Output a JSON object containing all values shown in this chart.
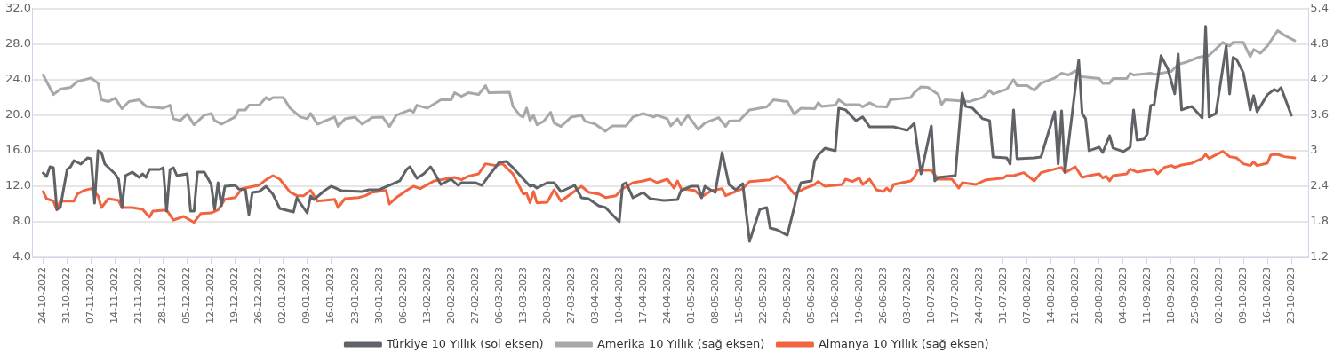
{
  "chart_data": {
    "type": "line",
    "legend": "bottom",
    "grid": "y",
    "line_style": "solid",
    "xlim": [
      "2022-10-21",
      "2023-10-28"
    ],
    "xticks": [
      {
        "value": "2022-10-24",
        "label": "24-10-2022"
      },
      {
        "value": "2022-10-31",
        "label": "31-10-2022"
      },
      {
        "value": "2022-11-07",
        "label": "07-11-2022"
      },
      {
        "value": "2022-11-14",
        "label": "14-11-2022"
      },
      {
        "value": "2022-11-21",
        "label": "21-11-2022"
      },
      {
        "value": "2022-11-28",
        "label": "28-11-2022"
      },
      {
        "value": "2022-12-05",
        "label": "05-12-2022"
      },
      {
        "value": "2022-12-12",
        "label": "12-12-2022"
      },
      {
        "value": "2022-12-19",
        "label": "19-12-2022"
      },
      {
        "value": "2022-12-26",
        "label": "26-12-2022"
      },
      {
        "value": "2023-01-02",
        "label": "02-01-2023"
      },
      {
        "value": "2023-01-09",
        "label": "09-01-2023"
      },
      {
        "value": "2023-01-16",
        "label": "16-01-2023"
      },
      {
        "value": "2023-01-23",
        "label": "23-01-2023"
      },
      {
        "value": "2023-01-30",
        "label": "30-01-2023"
      },
      {
        "value": "2023-02-06",
        "label": "06-02-2023"
      },
      {
        "value": "2023-02-13",
        "label": "13-02-2023"
      },
      {
        "value": "2023-02-20",
        "label": "20-02-2023"
      },
      {
        "value": "2023-02-27",
        "label": "27-02-2023"
      },
      {
        "value": "2023-03-06",
        "label": "06-03-2023"
      },
      {
        "value": "2023-03-13",
        "label": "13-03-2023"
      },
      {
        "value": "2023-03-20",
        "label": "20-03-2023"
      },
      {
        "value": "2023-03-27",
        "label": "27-03-2023"
      },
      {
        "value": "2023-04-03",
        "label": "03-04-2023"
      },
      {
        "value": "2023-04-10",
        "label": "10-04-2023"
      },
      {
        "value": "2023-04-17",
        "label": "17-04-2023"
      },
      {
        "value": "2023-04-24",
        "label": "24-04-2023"
      },
      {
        "value": "2023-05-01",
        "label": "01-05-2023"
      },
      {
        "value": "2023-05-08",
        "label": "08-05-2023"
      },
      {
        "value": "2023-05-15",
        "label": "15-05-2023"
      },
      {
        "value": "2023-05-22",
        "label": "22-05-2023"
      },
      {
        "value": "2023-05-29",
        "label": "29-05-2023"
      },
      {
        "value": "2023-06-05",
        "label": "05-06-2023"
      },
      {
        "value": "2023-06-12",
        "label": "12-06-2023"
      },
      {
        "value": "2023-06-19",
        "label": "19-06-2023"
      },
      {
        "value": "2023-06-26",
        "label": "26-06-2023"
      },
      {
        "value": "2023-07-03",
        "label": "03-07-2023"
      },
      {
        "value": "2023-07-10",
        "label": "10-07-2023"
      },
      {
        "value": "2023-07-17",
        "label": "17-07-2023"
      },
      {
        "value": "2023-07-24",
        "label": "24-07-2023"
      },
      {
        "value": "2023-07-31",
        "label": "31-07-2023"
      },
      {
        "value": "2023-08-07",
        "label": "07-08-2023"
      },
      {
        "value": "2023-08-14",
        "label": "14-08-2023"
      },
      {
        "value": "2023-08-21",
        "label": "21-08-2023"
      },
      {
        "value": "2023-08-28",
        "label": "28-08-2023"
      },
      {
        "value": "2023-09-04",
        "label": "04-09-2023"
      },
      {
        "value": "2023-09-11",
        "label": "11-09-2023"
      },
      {
        "value": "2023-09-18",
        "label": "18-09-2023"
      },
      {
        "value": "2023-09-25",
        "label": "25-09-2023"
      },
      {
        "value": "2023-10-02",
        "label": "02-10-2023"
      },
      {
        "value": "2023-10-09",
        "label": "09-10-2023"
      },
      {
        "value": "2023-10-16",
        "label": "16-10-2023"
      },
      {
        "value": "2023-10-23",
        "label": "23-10-2023"
      }
    ],
    "ylim": [
      4,
      32
    ],
    "yticks": [
      {
        "value": 4,
        "label": "4.0"
      },
      {
        "value": 8,
        "label": "8.0"
      },
      {
        "value": 12,
        "label": "12.0"
      },
      {
        "value": 16,
        "label": "16.0"
      },
      {
        "value": 20,
        "label": "20.0"
      },
      {
        "value": 24,
        "label": "24.0"
      },
      {
        "value": 28,
        "label": "28.0"
      },
      {
        "value": 32,
        "label": "32.0"
      }
    ],
    "y2lim": [
      1.2,
      5.4
    ],
    "y2ticks": [
      1.2,
      1.8,
      2.4,
      3.0,
      3.6,
      4.2,
      4.8,
      5.4
    ],
    "series": [
      {
        "name": "Türkiye 10 Yıllık (sol eksen)",
        "color": "#5f6266",
        "x": [
          "2022-10-24",
          "2022-10-25",
          "2022-10-26",
          "2022-10-27",
          "2022-10-28",
          "2022-10-29",
          "2022-10-31",
          "2022-11-01",
          "2022-11-02",
          "2022-11-04",
          "2022-11-06",
          "2022-11-07",
          "2022-11-08",
          "2022-11-09",
          "2022-11-10",
          "2022-11-11",
          "2022-11-14",
          "2022-11-15",
          "2022-11-16",
          "2022-11-17",
          "2022-11-19",
          "2022-11-21",
          "2022-11-22",
          "2022-11-23",
          "2022-11-24",
          "2022-11-27",
          "2022-11-28",
          "2022-11-29",
          "2022-11-30",
          "2022-12-01",
          "2022-12-02",
          "2022-12-05",
          "2022-12-06",
          "2022-12-07",
          "2022-12-08",
          "2022-12-10",
          "2022-12-12",
          "2022-12-13",
          "2022-12-14",
          "2022-12-15",
          "2022-12-16",
          "2022-12-19",
          "2022-12-20",
          "2022-12-22",
          "2022-12-23",
          "2022-12-24",
          "2022-12-26",
          "2022-12-28",
          "2022-12-30",
          "2023-01-01",
          "2023-01-05",
          "2023-01-06",
          "2023-01-07",
          "2023-01-09",
          "2023-01-10",
          "2023-01-11",
          "2023-01-14",
          "2023-01-16",
          "2023-01-19",
          "2023-01-25",
          "2023-01-27",
          "2023-01-30",
          "2023-02-02",
          "2023-02-05",
          "2023-02-07",
          "2023-02-08",
          "2023-02-10",
          "2023-02-12",
          "2023-02-14",
          "2023-02-15",
          "2023-02-17",
          "2023-02-20",
          "2023-02-22",
          "2023-02-23",
          "2023-02-27",
          "2023-03-01",
          "2023-03-03",
          "2023-03-06",
          "2023-03-08",
          "2023-03-10",
          "2023-03-15",
          "2023-03-16",
          "2023-03-17",
          "2023-03-20",
          "2023-03-22",
          "2023-03-24",
          "2023-03-28",
          "2023-03-30",
          "2023-04-01",
          "2023-04-04",
          "2023-04-06",
          "2023-04-08",
          "2023-04-10",
          "2023-04-11",
          "2023-04-12",
          "2023-04-14",
          "2023-04-17",
          "2023-04-19",
          "2023-04-23",
          "2023-04-27",
          "2023-04-28",
          "2023-05-01",
          "2023-05-03",
          "2023-05-04",
          "2023-05-05",
          "2023-05-07",
          "2023-05-08",
          "2023-05-10",
          "2023-05-12",
          "2023-05-14",
          "2023-05-16",
          "2023-05-18",
          "2023-05-21",
          "2023-05-23",
          "2023-05-24",
          "2023-05-26",
          "2023-05-29",
          "2023-05-31",
          "2023-06-01",
          "2023-06-02",
          "2023-06-05",
          "2023-06-06",
          "2023-06-07",
          "2023-06-09",
          "2023-06-12",
          "2023-06-13",
          "2023-06-15",
          "2023-06-18",
          "2023-06-20",
          "2023-06-22",
          "2023-06-27",
          "2023-06-29",
          "2023-07-03",
          "2023-07-05",
          "2023-07-07",
          "2023-07-10",
          "2023-07-11",
          "2023-07-12",
          "2023-07-17",
          "2023-07-19",
          "2023-07-20",
          "2023-07-22",
          "2023-07-25",
          "2023-07-27",
          "2023-07-28",
          "2023-08-01",
          "2023-08-02",
          "2023-08-03",
          "2023-08-04",
          "2023-08-09",
          "2023-08-11",
          "2023-08-15",
          "2023-08-16",
          "2023-08-17",
          "2023-08-18",
          "2023-08-22",
          "2023-08-23",
          "2023-08-24",
          "2023-08-25",
          "2023-08-28",
          "2023-08-29",
          "2023-08-31",
          "2023-09-01",
          "2023-09-04",
          "2023-09-06",
          "2023-09-07",
          "2023-09-08",
          "2023-09-10",
          "2023-09-11",
          "2023-09-12",
          "2023-09-13",
          "2023-09-15",
          "2023-09-17",
          "2023-09-19",
          "2023-09-20",
          "2023-09-21",
          "2023-09-24",
          "2023-09-27",
          "2023-09-28",
          "2023-09-29",
          "2023-10-01",
          "2023-10-04",
          "2023-10-05",
          "2023-10-06",
          "2023-10-07",
          "2023-10-09",
          "2023-10-11",
          "2023-10-12",
          "2023-10-13",
          "2023-10-16",
          "2023-10-18",
          "2023-10-19",
          "2023-10-20",
          "2023-10-23"
        ],
        "values": [
          13.5,
          13.1,
          14.2,
          14.1,
          9.4,
          9.6,
          13.9,
          14.2,
          14.9,
          14.5,
          15.2,
          15.1,
          10.1,
          16.0,
          15.8,
          14.5,
          13.4,
          12.8,
          9.6,
          13.2,
          13.6,
          13.0,
          13.4,
          13.0,
          13.9,
          13.9,
          14.1,
          9.2,
          13.9,
          14.1,
          13.2,
          13.4,
          9.2,
          9.2,
          13.6,
          13.6,
          12.2,
          9.4,
          12.4,
          9.8,
          12.0,
          12.1,
          11.7,
          11.6,
          8.8,
          11.3,
          11.4,
          12.0,
          11.1,
          9.5,
          9.1,
          10.7,
          10.1,
          9.0,
          10.9,
          10.5,
          11.5,
          12.0,
          11.5,
          11.4,
          11.6,
          11.6,
          12.1,
          12.6,
          13.9,
          14.2,
          12.9,
          13.4,
          14.2,
          13.6,
          12.2,
          12.8,
          12.1,
          12.4,
          12.4,
          12.1,
          13.2,
          14.7,
          14.8,
          14.1,
          12.0,
          12.1,
          11.8,
          12.4,
          12.4,
          11.4,
          12.1,
          10.7,
          10.6,
          9.8,
          9.6,
          8.8,
          8.0,
          12.2,
          12.4,
          10.7,
          11.3,
          10.6,
          10.4,
          10.5,
          11.5,
          12.0,
          12.0,
          10.7,
          12.0,
          11.5,
          11.3,
          15.8,
          12.2,
          11.6,
          12.3,
          5.8,
          9.4,
          9.6,
          7.3,
          7.1,
          6.5,
          9.6,
          11.3,
          12.4,
          12.6,
          14.9,
          15.5,
          16.3,
          16.0,
          20.8,
          20.6,
          19.4,
          19.8,
          18.7,
          18.7,
          18.7,
          18.3,
          19.1,
          13.4,
          18.8,
          12.6,
          13.0,
          13.2,
          22.5,
          21.0,
          20.8,
          19.6,
          19.4,
          15.3,
          15.2,
          14.5,
          20.6,
          15.1,
          15.2,
          15.3,
          20.4,
          14.5,
          20.5,
          13.6,
          26.2,
          20.2,
          19.6,
          16.0,
          16.4,
          15.8,
          17.7,
          16.3,
          15.9,
          16.4,
          20.6,
          17.2,
          17.3,
          17.9,
          21.1,
          21.2,
          26.7,
          25.2,
          22.4,
          26.9,
          20.6,
          21.0,
          19.7,
          30.0,
          19.8,
          20.2,
          27.8,
          22.4,
          26.5,
          26.3,
          24.8,
          20.6,
          22.2,
          20.4,
          22.3,
          22.9,
          22.7,
          23.1,
          20.0
        ]
      },
      {
        "name": "Amerika 10 Yıllık (sağ eksen)",
        "color": "#a8a8a8",
        "axis": "y2",
        "x": [
          "2022-10-24",
          "2022-10-27",
          "2022-10-29",
          "2022-11-01",
          "2022-11-03",
          "2022-11-07",
          "2022-11-09",
          "2022-11-10",
          "2022-11-12",
          "2022-11-14",
          "2022-11-16",
          "2022-11-18",
          "2022-11-21",
          "2022-11-23",
          "2022-11-28",
          "2022-11-30",
          "2022-12-01",
          "2022-12-03",
          "2022-12-05",
          "2022-12-07",
          "2022-12-10",
          "2022-12-12",
          "2022-12-13",
          "2022-12-15",
          "2022-12-19",
          "2022-12-20",
          "2022-12-22",
          "2022-12-23",
          "2022-12-26",
          "2022-12-28",
          "2022-12-29",
          "2022-12-30",
          "2023-01-02",
          "2023-01-04",
          "2023-01-07",
          "2023-01-09",
          "2023-01-10",
          "2023-01-12",
          "2023-01-17",
          "2023-01-18",
          "2023-01-20",
          "2023-01-23",
          "2023-01-25",
          "2023-01-28",
          "2023-01-31",
          "2023-02-02",
          "2023-02-04",
          "2023-02-08",
          "2023-02-09",
          "2023-02-10",
          "2023-02-13",
          "2023-02-17",
          "2023-02-20",
          "2023-02-21",
          "2023-02-23",
          "2023-02-25",
          "2023-02-28",
          "2023-03-02",
          "2023-03-03",
          "2023-03-09",
          "2023-03-10",
          "2023-03-12",
          "2023-03-13",
          "2023-03-14",
          "2023-03-15",
          "2023-03-16",
          "2023-03-17",
          "2023-03-19",
          "2023-03-21",
          "2023-03-22",
          "2023-03-24",
          "2023-03-27",
          "2023-03-30",
          "2023-03-31",
          "2023-04-03",
          "2023-04-06",
          "2023-04-08",
          "2023-04-12",
          "2023-04-14",
          "2023-04-17",
          "2023-04-20",
          "2023-04-21",
          "2023-04-24",
          "2023-04-25",
          "2023-04-27",
          "2023-04-28",
          "2023-04-30",
          "2023-05-03",
          "2023-05-05",
          "2023-05-09",
          "2023-05-11",
          "2023-05-12",
          "2023-05-15",
          "2023-05-18",
          "2023-05-23",
          "2023-05-25",
          "2023-05-29",
          "2023-05-31",
          "2023-06-02",
          "2023-06-06",
          "2023-06-07",
          "2023-06-08",
          "2023-06-12",
          "2023-06-13",
          "2023-06-15",
          "2023-06-19",
          "2023-06-20",
          "2023-06-22",
          "2023-06-24",
          "2023-06-27",
          "2023-06-28",
          "2023-07-04",
          "2023-07-05",
          "2023-07-07",
          "2023-07-09",
          "2023-07-12",
          "2023-07-13",
          "2023-07-14",
          "2023-07-21",
          "2023-07-25",
          "2023-07-27",
          "2023-07-28",
          "2023-08-01",
          "2023-08-03",
          "2023-08-04",
          "2023-08-07",
          "2023-08-09",
          "2023-08-11",
          "2023-08-15",
          "2023-08-17",
          "2023-08-19",
          "2023-08-21",
          "2023-08-23",
          "2023-08-28",
          "2023-08-29",
          "2023-08-31",
          "2023-09-01",
          "2023-09-05",
          "2023-09-06",
          "2023-09-07",
          "2023-09-12",
          "2023-09-13",
          "2023-09-18",
          "2023-09-20",
          "2023-09-22",
          "2023-09-26",
          "2023-09-29",
          "2023-10-03",
          "2023-10-05",
          "2023-10-06",
          "2023-10-09",
          "2023-10-11",
          "2023-10-12",
          "2023-10-14",
          "2023-10-16",
          "2023-10-19",
          "2023-10-21",
          "2023-10-24"
        ],
        "values": [
          4.28,
          3.95,
          4.04,
          4.07,
          4.17,
          4.23,
          4.14,
          3.86,
          3.83,
          3.89,
          3.71,
          3.83,
          3.86,
          3.75,
          3.72,
          3.77,
          3.54,
          3.51,
          3.62,
          3.44,
          3.6,
          3.63,
          3.51,
          3.45,
          3.57,
          3.69,
          3.69,
          3.77,
          3.77,
          3.9,
          3.86,
          3.9,
          3.9,
          3.72,
          3.57,
          3.54,
          3.63,
          3.45,
          3.57,
          3.41,
          3.54,
          3.57,
          3.45,
          3.56,
          3.57,
          3.41,
          3.6,
          3.69,
          3.65,
          3.77,
          3.72,
          3.86,
          3.86,
          3.98,
          3.92,
          3.98,
          3.95,
          4.1,
          3.98,
          3.99,
          3.75,
          3.6,
          3.57,
          3.72,
          3.51,
          3.6,
          3.44,
          3.5,
          3.65,
          3.47,
          3.41,
          3.57,
          3.6,
          3.5,
          3.45,
          3.33,
          3.42,
          3.42,
          3.57,
          3.63,
          3.57,
          3.6,
          3.54,
          3.42,
          3.54,
          3.44,
          3.6,
          3.36,
          3.47,
          3.56,
          3.41,
          3.5,
          3.51,
          3.69,
          3.74,
          3.86,
          3.83,
          3.62,
          3.72,
          3.71,
          3.81,
          3.75,
          3.77,
          3.86,
          3.78,
          3.78,
          3.74,
          3.81,
          3.75,
          3.74,
          3.86,
          3.9,
          3.98,
          4.08,
          4.07,
          3.95,
          3.78,
          3.86,
          3.83,
          3.9,
          4.02,
          3.96,
          4.04,
          4.2,
          4.1,
          4.1,
          4.02,
          4.14,
          4.23,
          4.31,
          4.28,
          4.35,
          4.25,
          4.22,
          4.14,
          4.14,
          4.22,
          4.22,
          4.31,
          4.28,
          4.31,
          4.29,
          4.34,
          4.46,
          4.49,
          4.58,
          4.61,
          4.83,
          4.77,
          4.83,
          4.83,
          4.59,
          4.71,
          4.65,
          4.77,
          5.03,
          4.95,
          4.86
        ]
      },
      {
        "name": "Almanya 10 Yıllık (sağ eksen)",
        "color": "#f26440",
        "axis": "y2",
        "x": [
          "2022-10-24",
          "2022-10-25",
          "2022-10-27",
          "2022-10-28",
          "2022-10-29",
          "2022-11-02",
          "2022-11-03",
          "2022-11-05",
          "2022-11-07",
          "2022-11-09",
          "2022-11-10",
          "2022-11-12",
          "2022-11-15",
          "2022-11-16",
          "2022-11-19",
          "2022-11-22",
          "2022-11-24",
          "2022-11-25",
          "2022-11-29",
          "2022-12-01",
          "2022-12-04",
          "2022-12-07",
          "2022-12-09",
          "2022-12-12",
          "2022-12-14",
          "2022-12-16",
          "2022-12-19",
          "2022-12-21",
          "2022-12-26",
          "2022-12-28",
          "2022-12-30",
          "2023-01-01",
          "2023-01-04",
          "2023-01-06",
          "2023-01-08",
          "2023-01-10",
          "2023-01-12",
          "2023-01-17",
          "2023-01-18",
          "2023-01-20",
          "2023-01-24",
          "2023-01-26",
          "2023-01-28",
          "2023-02-01",
          "2023-02-02",
          "2023-02-04",
          "2023-02-07",
          "2023-02-09",
          "2023-02-11",
          "2023-02-15",
          "2023-02-18",
          "2023-02-21",
          "2023-02-23",
          "2023-02-25",
          "2023-02-28",
          "2023-03-02",
          "2023-03-05",
          "2023-03-07",
          "2023-03-10",
          "2023-03-13",
          "2023-03-14",
          "2023-03-15",
          "2023-03-16",
          "2023-03-17",
          "2023-03-20",
          "2023-03-22",
          "2023-03-24",
          "2023-03-30",
          "2023-04-01",
          "2023-04-04",
          "2023-04-06",
          "2023-04-09",
          "2023-04-11",
          "2023-04-14",
          "2023-04-17",
          "2023-04-19",
          "2023-04-21",
          "2023-04-24",
          "2023-04-26",
          "2023-04-27",
          "2023-04-28",
          "2023-05-02",
          "2023-05-04",
          "2023-05-07",
          "2023-05-10",
          "2023-05-11",
          "2023-05-16",
          "2023-05-18",
          "2023-05-24",
          "2023-05-26",
          "2023-05-28",
          "2023-05-31",
          "2023-06-03",
          "2023-06-06",
          "2023-06-07",
          "2023-06-09",
          "2023-06-14",
          "2023-06-15",
          "2023-06-17",
          "2023-06-19",
          "2023-06-20",
          "2023-06-22",
          "2023-06-24",
          "2023-06-26",
          "2023-06-27",
          "2023-06-28",
          "2023-06-29",
          "2023-07-04",
          "2023-07-05",
          "2023-07-06",
          "2023-07-10",
          "2023-07-12",
          "2023-07-16",
          "2023-07-18",
          "2023-07-19",
          "2023-07-23",
          "2023-07-26",
          "2023-07-31",
          "2023-08-01",
          "2023-08-03",
          "2023-08-06",
          "2023-08-09",
          "2023-08-11",
          "2023-08-15",
          "2023-08-17",
          "2023-08-18",
          "2023-08-21",
          "2023-08-23",
          "2023-08-25",
          "2023-08-28",
          "2023-08-29",
          "2023-08-30",
          "2023-08-31",
          "2023-09-01",
          "2023-09-05",
          "2023-09-06",
          "2023-09-08",
          "2023-09-13",
          "2023-09-14",
          "2023-09-16",
          "2023-09-18",
          "2023-09-19",
          "2023-09-21",
          "2023-09-24",
          "2023-09-27",
          "2023-09-28",
          "2023-09-29",
          "2023-10-03",
          "2023-10-05",
          "2023-10-07",
          "2023-10-09",
          "2023-10-11",
          "2023-10-12",
          "2023-10-13",
          "2023-10-16",
          "2023-10-17",
          "2023-10-19",
          "2023-10-21",
          "2023-10-24"
        ],
        "values": [
          2.31,
          2.19,
          2.15,
          2.0,
          2.15,
          2.15,
          2.27,
          2.33,
          2.36,
          2.24,
          2.04,
          2.19,
          2.16,
          2.04,
          2.04,
          2.01,
          1.88,
          1.98,
          2.0,
          1.83,
          1.89,
          1.79,
          1.94,
          1.95,
          2.0,
          2.18,
          2.21,
          2.36,
          2.42,
          2.51,
          2.58,
          2.52,
          2.3,
          2.24,
          2.24,
          2.33,
          2.15,
          2.18,
          2.04,
          2.19,
          2.21,
          2.24,
          2.3,
          2.33,
          2.1,
          2.21,
          2.33,
          2.4,
          2.36,
          2.49,
          2.52,
          2.55,
          2.51,
          2.57,
          2.61,
          2.78,
          2.75,
          2.78,
          2.61,
          2.27,
          2.28,
          2.12,
          2.31,
          2.12,
          2.13,
          2.34,
          2.15,
          2.4,
          2.3,
          2.27,
          2.21,
          2.24,
          2.36,
          2.46,
          2.49,
          2.52,
          2.46,
          2.52,
          2.37,
          2.49,
          2.36,
          2.33,
          2.22,
          2.33,
          2.36,
          2.24,
          2.36,
          2.48,
          2.51,
          2.57,
          2.49,
          2.27,
          2.36,
          2.43,
          2.48,
          2.4,
          2.43,
          2.52,
          2.48,
          2.54,
          2.43,
          2.52,
          2.34,
          2.31,
          2.37,
          2.31,
          2.43,
          2.49,
          2.55,
          2.67,
          2.67,
          2.52,
          2.52,
          2.37,
          2.46,
          2.43,
          2.51,
          2.54,
          2.58,
          2.58,
          2.63,
          2.49,
          2.63,
          2.69,
          2.72,
          2.63,
          2.73,
          2.55,
          2.58,
          2.61,
          2.54,
          2.57,
          2.49,
          2.58,
          2.61,
          2.69,
          2.64,
          2.69,
          2.61,
          2.72,
          2.75,
          2.72,
          2.76,
          2.79,
          2.87,
          2.94,
          2.87,
          2.99,
          2.9,
          2.88,
          2.78,
          2.75,
          2.81,
          2.75,
          2.79,
          2.93,
          2.94,
          2.9,
          2.88
        ]
      }
    ]
  }
}
